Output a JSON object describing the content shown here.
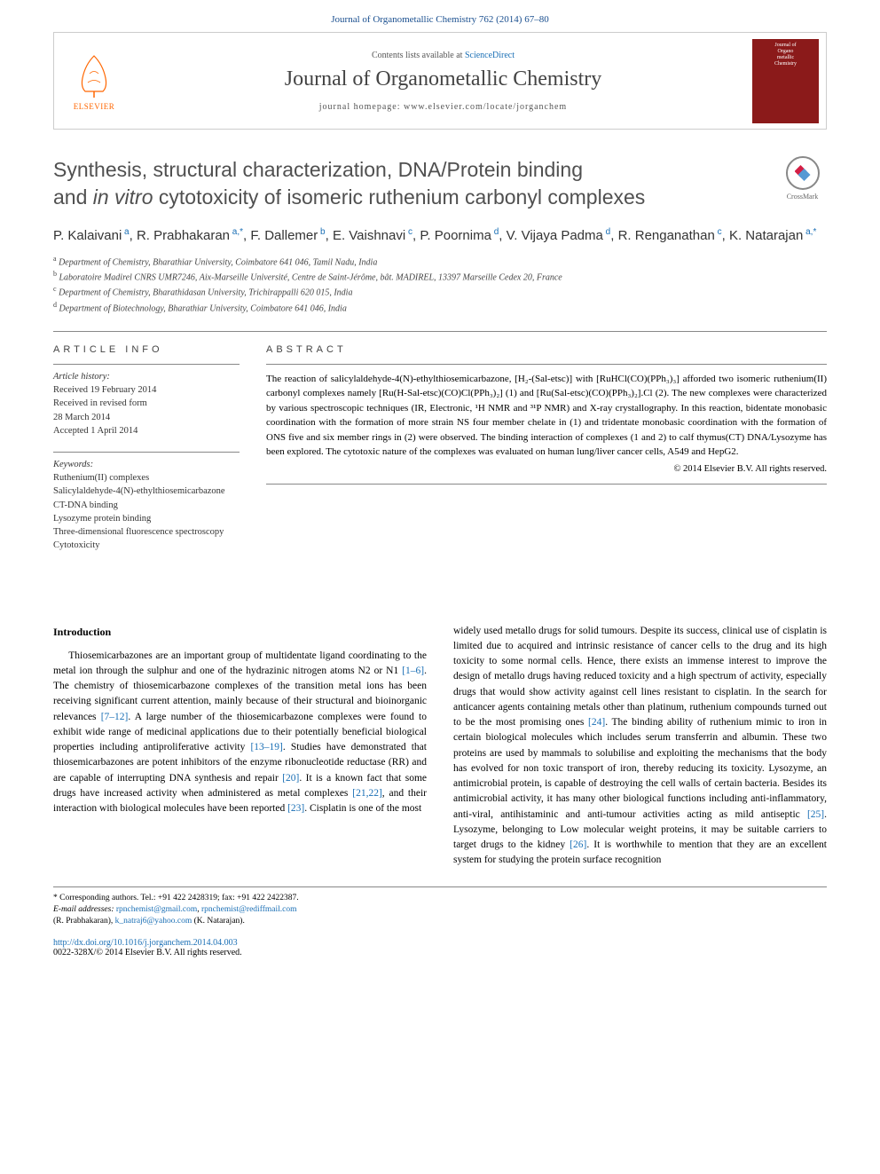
{
  "header": {
    "citation": "Journal of Organometallic Chemistry 762 (2014) 67–80",
    "contents_prefix": "Contents lists available at ",
    "contents_link": "ScienceDirect",
    "journal_name": "Journal of Organometallic Chemistry",
    "homepage_prefix": "journal homepage: ",
    "homepage_url": "www.elsevier.com/locate/jorganchem",
    "elsevier_label": "ELSEVIER",
    "cover_text_1": "Journal of",
    "cover_text_2": "Organo",
    "cover_text_3": "metallic",
    "cover_text_4": "Chemistry"
  },
  "title": {
    "line1": "Synthesis, structural characterization, DNA/Protein binding",
    "line2_pre": "and ",
    "line2_it": "in vitro",
    "line2_post": " cytotoxicity of isomeric ruthenium carbonyl complexes"
  },
  "crossmark_label": "CrossMark",
  "authors": [
    {
      "name": "P. Kalaivani",
      "aff": "a"
    },
    {
      "name": "R. Prabhakaran",
      "aff": "a,*"
    },
    {
      "name": "F. Dallemer",
      "aff": "b"
    },
    {
      "name": "E. Vaishnavi",
      "aff": "c"
    },
    {
      "name": "P. Poornima",
      "aff": "d"
    },
    {
      "name": "V. Vijaya Padma",
      "aff": "d"
    },
    {
      "name": "R. Renganathan",
      "aff": "c"
    },
    {
      "name": "K. Natarajan",
      "aff": "a,*"
    }
  ],
  "affiliations": [
    {
      "sup": "a",
      "text": "Department of Chemistry, Bharathiar University, Coimbatore 641 046, Tamil Nadu, India"
    },
    {
      "sup": "b",
      "text": "Laboratoire Madirel CNRS UMR7246, Aix-Marseille Université, Centre de Saint-Jérôme, bât. MADIREL, 13397 Marseille Cedex 20, France"
    },
    {
      "sup": "c",
      "text": "Department of Chemistry, Bharathidasan University, Trichirappalli 620 015, India"
    },
    {
      "sup": "d",
      "text": "Department of Biotechnology, Bharathiar University, Coimbatore 641 046, India"
    }
  ],
  "article_info": {
    "section_label": "ARTICLE INFO",
    "history_label": "Article history:",
    "received": "Received 19 February 2014",
    "revised_1": "Received in revised form",
    "revised_2": "28 March 2014",
    "accepted": "Accepted 1 April 2014",
    "keywords_label": "Keywords:",
    "keywords": [
      "Ruthenium(II) complexes",
      "Salicylaldehyde-4(N)-ethylthiosemicarbazone",
      "CT-DNA binding",
      "Lysozyme protein binding",
      "Three-dimensional fluorescence spectroscopy",
      "Cytotoxicity"
    ]
  },
  "abstract": {
    "section_label": "ABSTRACT",
    "text": "The reaction of salicylaldehyde-4(N)-ethylthiosemicarbazone, [H₂-(Sal-etsc)] with [RuHCl(CO)(PPh₃)₃] afforded two isomeric ruthenium(II) carbonyl complexes namely [Ru(H-Sal-etsc)(CO)Cl(PPh₃)₂] (1) and [Ru(Sal-etsc)(CO)(PPh₃)₂].Cl (2). The new complexes were characterized by various spectroscopic techniques (IR, Electronic, ¹H NMR and ³¹P NMR) and X-ray crystallography. In this reaction, bidentate monobasic coordination with the formation of more strain NS four member chelate in (1) and tridentate monobasic coordination with the formation of ONS five and six member rings in (2) were observed. The binding interaction of complexes (1 and 2) to calf thymus(CT) DNA/Lysozyme has been explored. The cytotoxic nature of the complexes was evaluated on human lung/liver cancer cells, A549 and HepG2.",
    "copyright": "© 2014 Elsevier B.V. All rights reserved."
  },
  "body": {
    "intro_heading": "Introduction",
    "col1_p1_a": "Thiosemicarbazones are an important group of multidentate ligand coordinating to the metal ion through the sulphur and one of the hydrazinic nitrogen atoms N2 or N1 ",
    "col1_ref1": "[1–6]",
    "col1_p1_b": ". The chemistry of thiosemicarbazone complexes of the transition metal ions has been receiving significant current attention, mainly because of their structural and bioinorganic relevances ",
    "col1_ref2": "[7–12]",
    "col1_p1_c": ". A large number of the thiosemicarbazone complexes were found to exhibit wide range of medicinal applications due to their potentially beneficial biological properties including antiproliferative activity ",
    "col1_ref3": "[13–19]",
    "col1_p1_d": ". Studies have demonstrated that thiosemicarbazones are potent inhibitors of the enzyme ribonucleotide reductase (RR) and are capable of interrupting DNA synthesis and repair ",
    "col1_ref4": "[20]",
    "col1_p1_e": ". It is a known fact that some drugs have increased activity when administered as metal complexes ",
    "col1_ref5": "[21,22]",
    "col1_p1_f": ", and their interaction with biological molecules have been reported ",
    "col1_ref6": "[23]",
    "col1_p1_g": ". Cisplatin is one of the most",
    "col2_p1_a": "widely used metallo drugs for solid tumours. Despite its success, clinical use of cisplatin is limited due to acquired and intrinsic resistance of cancer cells to the drug and its high toxicity to some normal cells. Hence, there exists an immense interest to improve the design of metallo drugs having reduced toxicity and a high spectrum of activity, especially drugs that would show activity against cell lines resistant to cisplatin. In the search for anticancer agents containing metals other than platinum, ruthenium compounds turned out to be the most promising ones ",
    "col2_ref1": "[24]",
    "col2_p1_b": ". The binding ability of ruthenium mimic to iron in certain biological molecules which includes serum transferrin and albumin. These two proteins are used by mammals to solubilise and exploiting the mechanisms that the body has evolved for non toxic transport of iron, thereby reducing its toxicity. Lysozyme, an antimicrobial protein, is capable of destroying the cell walls of certain bacteria. Besides its antimicrobial activity, it has many other biological functions including anti-inflammatory, anti-viral, antihistaminic and anti-tumour activities acting as mild antiseptic ",
    "col2_ref2": "[25]",
    "col2_p1_c": ". Lysozyme, belonging to Low molecular weight proteins, it may be suitable carriers to target drugs to the kidney ",
    "col2_ref3": "[26]",
    "col2_p1_d": ". It is worthwhile to mention that they are an excellent system for studying the protein surface recognition"
  },
  "footer": {
    "corr": "* Corresponding authors. Tel.: +91 422 2428319; fax: +91 422 2422387.",
    "email_label": "E-mail addresses:",
    "email1": "rpnchemist@gmail.com",
    "email1_sep": ", ",
    "email2": "rpnchemist@rediffmail.com",
    "name1": "(R. Prabhakaran), ",
    "email3": "k_natraj6@yahoo.com",
    "name2": " (K. Natarajan)."
  },
  "doi": {
    "url": "http://dx.doi.org/10.1016/j.jorganchem.2014.04.003",
    "issn": "0022-328X/© 2014 Elsevier B.V. All rights reserved."
  },
  "colors": {
    "link": "#1a6fb5",
    "header_blue": "#1a4f8f",
    "cover_bg": "#8b1a1a",
    "elsevier_orange": "#ff6600",
    "border": "#888888"
  }
}
